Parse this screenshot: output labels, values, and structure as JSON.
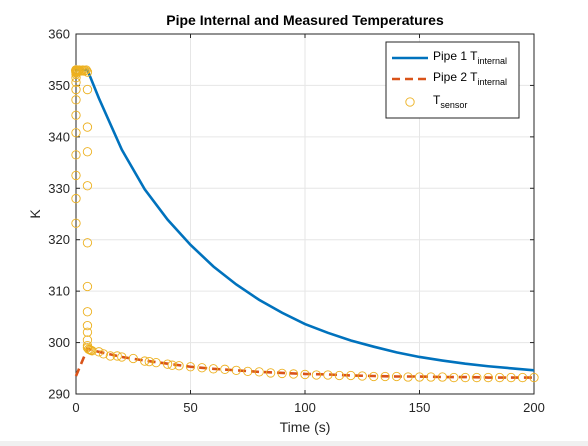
{
  "chart_data": {
    "type": "line",
    "title": "Pipe Internal and Measured Temperatures",
    "xlabel": "Time (s)",
    "ylabel": "K",
    "xlim": [
      0,
      200
    ],
    "ylim": [
      290,
      360
    ],
    "xticks": [
      0,
      50,
      100,
      150,
      200
    ],
    "yticks": [
      290,
      300,
      310,
      320,
      330,
      340,
      350,
      360
    ],
    "grid": true,
    "legend_location": "top-right",
    "series": [
      {
        "name": "Pipe 1 T",
        "name_sub": "internal",
        "style": "solid",
        "color": "#0072BD",
        "x": [
          0,
          5,
          10,
          20,
          30,
          40,
          50,
          60,
          70,
          80,
          90,
          100,
          110,
          120,
          130,
          140,
          150,
          160,
          170,
          180,
          190,
          200
        ],
        "y": [
          353,
          353,
          347.5,
          337.5,
          329.8,
          323.9,
          319.0,
          314.8,
          311.3,
          308.3,
          305.8,
          303.6,
          301.9,
          300.4,
          299.2,
          298.1,
          297.2,
          296.5,
          295.9,
          295.4,
          295.0,
          294.6
        ]
      },
      {
        "name": "Pipe 2 T",
        "name_sub": "internal",
        "style": "dashed",
        "color": "#D95319",
        "x": [
          0,
          5,
          10,
          20,
          30,
          40,
          50,
          60,
          70,
          80,
          90,
          100,
          110,
          120,
          130,
          140,
          150,
          160,
          170,
          180,
          190,
          200
        ],
        "y": [
          293.5,
          298.8,
          298.2,
          297.2,
          296.5,
          295.9,
          295.3,
          294.9,
          294.6,
          294.3,
          294.1,
          293.9,
          293.8,
          293.6,
          293.5,
          293.4,
          293.4,
          293.3,
          293.3,
          293.2,
          293.2,
          293.2
        ]
      },
      {
        "name": "T",
        "name_sub": "sensor",
        "style": "markers",
        "color": "#EDB120",
        "x": [
          0,
          0,
          0,
          0,
          0,
          0,
          0,
          0,
          0,
          0,
          0,
          0,
          0,
          0,
          0,
          0,
          0,
          0,
          0,
          0,
          0,
          0,
          0,
          0,
          0,
          0,
          0,
          0,
          0,
          0,
          0.5,
          0.5,
          0.5,
          0.5,
          1,
          1,
          1.5,
          2,
          2.5,
          3,
          3.5,
          4,
          4.5,
          5,
          5,
          5,
          5,
          5,
          5,
          5,
          5,
          5,
          5,
          5,
          5,
          5,
          5.5,
          6,
          6.5,
          7,
          10,
          12,
          15,
          18,
          20,
          25,
          30,
          32,
          35,
          40,
          42,
          45,
          50,
          55,
          60,
          65,
          70,
          75,
          80,
          85,
          90,
          95,
          100,
          105,
          110,
          115,
          120,
          125,
          130,
          135,
          140,
          145,
          150,
          155,
          160,
          165,
          170,
          175,
          180,
          185,
          190,
          195,
          200
        ],
        "y": [
          323.2,
          328,
          332.5,
          336.5,
          340.8,
          344.2,
          347.2,
          349.2,
          350.6,
          351.5,
          352.2,
          352.6,
          352.8,
          352.9,
          353,
          352.7,
          352.5,
          352.9,
          353,
          353,
          352.8,
          352.8,
          353,
          352.5,
          352.9,
          352.6,
          352.8,
          352.9,
          353,
          353,
          352.8,
          353,
          352.9,
          353,
          352.8,
          352.9,
          353,
          352.8,
          352.9,
          353,
          352.8,
          352.9,
          353,
          352.6,
          349.2,
          341.9,
          337.1,
          330.5,
          319.4,
          310.9,
          306.0,
          303.3,
          302.0,
          300.5,
          299.4,
          299.0,
          298.7,
          298.6,
          298.5,
          298.4,
          298.2,
          297.8,
          297.4,
          297.4,
          297.2,
          296.9,
          296.4,
          296.3,
          296.1,
          295.8,
          295.6,
          295.5,
          295.3,
          295.1,
          294.9,
          294.8,
          294.6,
          294.4,
          294.3,
          294.1,
          294.0,
          293.9,
          293.8,
          293.7,
          293.7,
          293.6,
          293.6,
          293.5,
          293.4,
          293.4,
          293.4,
          293.3,
          293.3,
          293.3,
          293.3,
          293.2,
          293.2,
          293.2,
          293.2,
          293.2,
          293.2,
          293.2,
          293.2
        ]
      }
    ]
  }
}
